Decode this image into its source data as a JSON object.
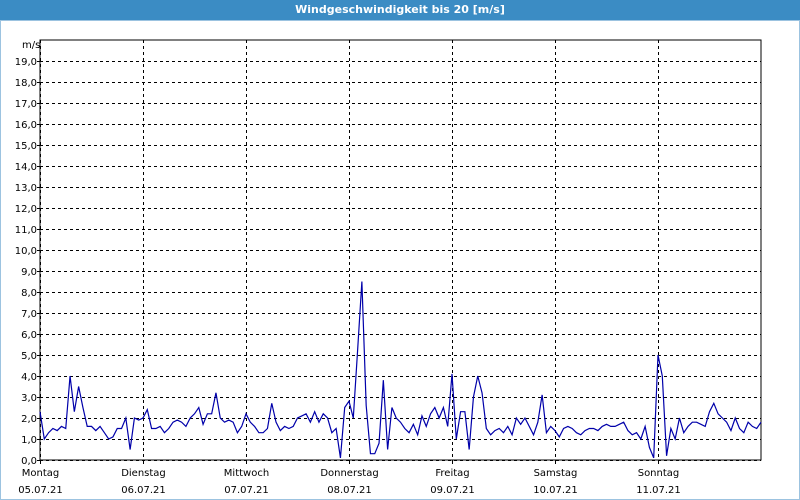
{
  "chart_data": {
    "type": "line",
    "title": "Windgeschwindigkeit bis 20 [m/s]",
    "y_label": "m/s",
    "xlim": [
      0,
      168
    ],
    "ylim": [
      0,
      20
    ],
    "grid": true,
    "xticks": [
      {
        "value": 0,
        "label": "Montag",
        "date": "05.07.21"
      },
      {
        "value": 24,
        "label": "Dienstag",
        "date": "06.07.21"
      },
      {
        "value": 48,
        "label": "Mittwoch",
        "date": "07.07.21"
      },
      {
        "value": 72,
        "label": "Donnerstag",
        "date": "08.07.21"
      },
      {
        "value": 96,
        "label": "Freitag",
        "date": "09.07.21"
      },
      {
        "value": 120,
        "label": "Samstag",
        "date": "10.07.21"
      },
      {
        "value": 144,
        "label": "Sonntag",
        "date": "11.07.21"
      }
    ],
    "yticks": [
      {
        "value": 0,
        "label": "0,0"
      },
      {
        "value": 1,
        "label": "1,0"
      },
      {
        "value": 2,
        "label": "2,0"
      },
      {
        "value": 3,
        "label": "3,0"
      },
      {
        "value": 4,
        "label": "4,0"
      },
      {
        "value": 5,
        "label": "5,0"
      },
      {
        "value": 6,
        "label": "6,0"
      },
      {
        "value": 7,
        "label": "7,0"
      },
      {
        "value": 8,
        "label": "8,0"
      },
      {
        "value": 9,
        "label": "9,0"
      },
      {
        "value": 10,
        "label": "10,0"
      },
      {
        "value": 11,
        "label": "11,0"
      },
      {
        "value": 12,
        "label": "12,0"
      },
      {
        "value": 13,
        "label": "13,0"
      },
      {
        "value": 14,
        "label": "14,0"
      },
      {
        "value": 15,
        "label": "15,0"
      },
      {
        "value": 16,
        "label": "16,0"
      },
      {
        "value": 17,
        "label": "17,0"
      },
      {
        "value": 18,
        "label": "18,0"
      },
      {
        "value": 19,
        "label": "19,0"
      }
    ],
    "x": [
      0,
      1,
      2,
      3,
      4,
      5,
      6,
      7,
      8,
      9,
      10,
      11,
      12,
      13,
      14,
      15,
      16,
      17,
      18,
      19,
      20,
      21,
      22,
      23,
      24,
      25,
      26,
      27,
      28,
      29,
      30,
      31,
      32,
      33,
      34,
      35,
      36,
      37,
      38,
      39,
      40,
      41,
      42,
      43,
      44,
      45,
      46,
      47,
      48,
      49,
      50,
      51,
      52,
      53,
      54,
      55,
      56,
      57,
      58,
      59,
      60,
      61,
      62,
      63,
      64,
      65,
      66,
      67,
      68,
      69,
      70,
      71,
      72,
      73,
      74,
      75,
      76,
      77,
      78,
      79,
      80,
      81,
      82,
      83,
      84,
      85,
      86,
      87,
      88,
      89,
      90,
      91,
      92,
      93,
      94,
      95,
      96,
      97,
      98,
      99,
      100,
      101,
      102,
      103,
      104,
      105,
      106,
      107,
      108,
      109,
      110,
      111,
      112,
      113,
      114,
      115,
      116,
      117,
      118,
      119,
      120,
      121,
      122,
      123,
      124,
      125,
      126,
      127,
      128,
      129,
      130,
      131,
      132,
      133,
      134,
      135,
      136,
      137,
      138,
      139,
      140,
      141,
      142,
      143,
      144,
      145,
      146,
      147,
      148,
      149,
      150,
      151,
      152,
      153,
      154,
      155,
      156,
      157,
      158,
      159,
      160,
      161,
      162,
      163,
      164,
      165,
      166,
      167,
      168
    ],
    "series": [
      {
        "color": "#0000aa",
        "values": [
          2.3,
          1.0,
          1.3,
          1.5,
          1.4,
          1.6,
          1.5,
          4.0,
          2.3,
          3.5,
          2.5,
          1.6,
          1.6,
          1.4,
          1.6,
          1.3,
          1.0,
          1.1,
          1.5,
          1.5,
          2.0,
          0.5,
          2.0,
          1.9,
          2.0,
          2.4,
          1.5,
          1.5,
          1.6,
          1.3,
          1.5,
          1.8,
          1.9,
          1.8,
          1.6,
          2.0,
          2.2,
          2.5,
          1.7,
          2.2,
          2.2,
          3.2,
          2.0,
          1.8,
          1.9,
          1.8,
          1.3,
          1.6,
          2.2,
          1.8,
          1.6,
          1.3,
          1.3,
          1.5,
          2.7,
          1.8,
          1.4,
          1.6,
          1.5,
          1.6,
          2.0,
          2.1,
          2.2,
          1.8,
          2.3,
          1.8,
          2.2,
          2.0,
          1.3,
          1.5,
          0.1,
          2.5,
          2.8,
          2.0,
          5.2,
          8.5,
          2.6,
          0.3,
          0.3,
          0.8,
          3.8,
          0.5,
          2.5,
          2.0,
          1.8,
          1.5,
          1.3,
          1.7,
          1.2,
          2.1,
          1.6,
          2.2,
          2.5,
          2.0,
          2.5,
          1.6,
          4.1,
          1.0,
          2.3,
          2.3,
          0.5,
          3.0,
          4.0,
          3.2,
          1.5,
          1.2,
          1.4,
          1.5,
          1.3,
          1.6,
          1.2,
          2.0,
          1.7,
          2.0,
          1.6,
          1.2,
          1.8,
          3.1,
          1.3,
          1.6,
          1.4,
          1.1,
          1.5,
          1.6,
          1.5,
          1.3,
          1.2,
          1.4,
          1.5,
          1.5,
          1.4,
          1.6,
          1.7,
          1.6,
          1.6,
          1.7,
          1.8,
          1.4,
          1.2,
          1.3,
          1.0,
          1.6,
          0.6,
          0.1,
          5.0,
          4.0,
          0.2,
          1.5,
          1.0,
          2.0,
          1.3,
          1.6,
          1.8,
          1.8,
          1.7,
          1.6,
          2.3,
          2.7,
          2.2,
          2.0,
          1.8,
          1.4,
          2.0,
          1.5,
          1.3,
          1.8,
          1.6,
          1.5,
          1.8
        ]
      }
    ]
  }
}
